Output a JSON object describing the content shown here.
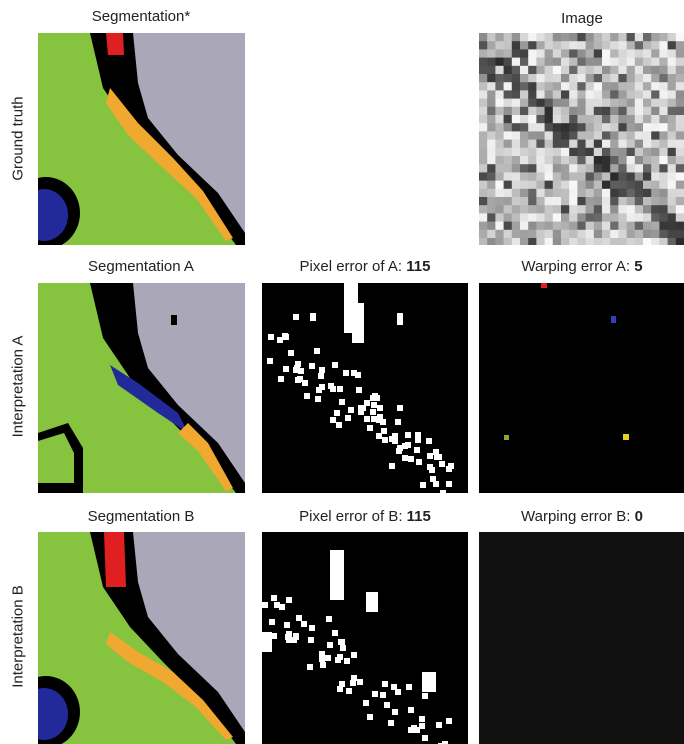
{
  "row_labels": [
    "Ground truth",
    "Interpretation A",
    "Interpretation B"
  ],
  "panels": {
    "ground_truth_segmentation": {
      "title": "Segmentation*"
    },
    "image": {
      "title": "Image"
    },
    "segmentation_a": {
      "title": "Segmentation A"
    },
    "pixel_error_a": {
      "title": "Pixel error of A:",
      "value": 115
    },
    "warping_error_a": {
      "title": "Warping error A:",
      "value": 5
    },
    "segmentation_b": {
      "title": "Segmentation B"
    },
    "pixel_error_b": {
      "title": "Pixel error of B:",
      "value": 115
    },
    "warping_error_b": {
      "title": "Warping error B:",
      "value": 0
    }
  }
}
